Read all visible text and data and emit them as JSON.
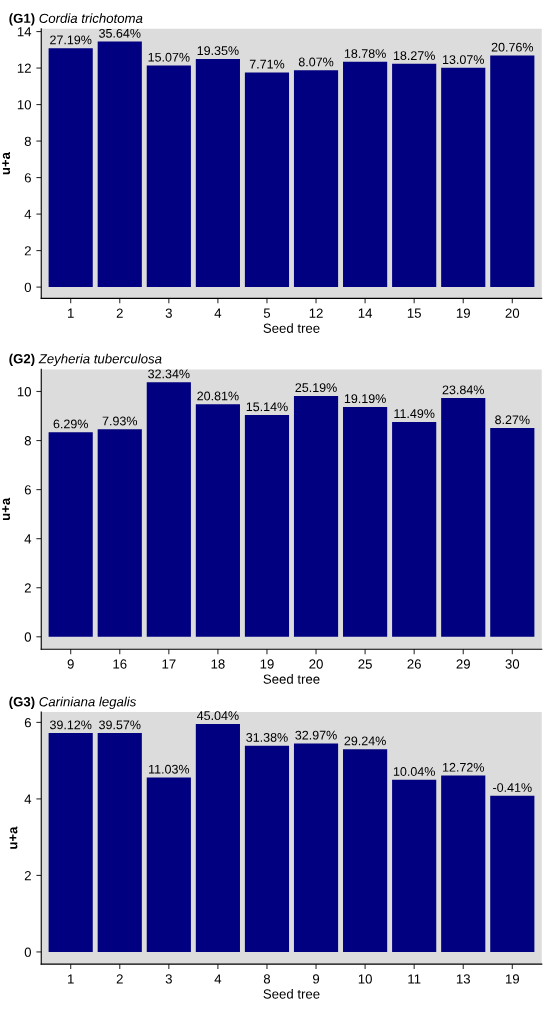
{
  "chart_data": [
    {
      "type": "bar",
      "title": "(G1) Cordia trichotoma",
      "xlabel": "Seed tree",
      "ylabel": "u+a",
      "categories": [
        "1",
        "2",
        "3",
        "4",
        "5",
        "12",
        "14",
        "15",
        "19",
        "20"
      ],
      "values": [
        13.09,
        13.45,
        12.14,
        12.5,
        11.76,
        11.88,
        12.34,
        12.23,
        12.01,
        12.69
      ],
      "color": "#000080",
      "annotations": [
        {
          "text": "27.19%",
          "x": "1",
          "y": 13.09
        },
        {
          "text": "35.64%",
          "x": "2",
          "y": 13.45
        },
        {
          "text": "15.07%",
          "x": "3",
          "y": 12.14
        },
        {
          "text": "19.35%",
          "x": "4",
          "y": 12.5
        },
        {
          "text": "7.71%",
          "x": "5",
          "y": 11.76
        },
        {
          "text": "8.07%",
          "x": "12",
          "y": 11.88
        },
        {
          "text": "18.78%",
          "x": "14",
          "y": 12.34
        },
        {
          "text": "18.27%",
          "x": "15",
          "y": 12.23
        },
        {
          "text": "13.07%",
          "x": "19",
          "y": 12.01
        },
        {
          "text": "20.76%",
          "x": "20",
          "y": 12.69
        }
      ],
      "ylim": [
        -0.62,
        14.15
      ],
      "yticks": [
        0,
        2,
        4,
        6,
        8,
        10,
        12,
        14
      ],
      "grid": false,
      "legend": false
    },
    {
      "type": "bar",
      "title": "(G2) Zeyheria tuberculosa",
      "xlabel": "Seed tree",
      "ylabel": "u+a",
      "categories": [
        "9",
        "16",
        "17",
        "18",
        "19",
        "20",
        "25",
        "26",
        "29",
        "30"
      ],
      "values": [
        8.34,
        8.46,
        10.38,
        9.48,
        9.04,
        9.82,
        9.37,
        8.76,
        9.73,
        8.51
      ],
      "color": "#000080",
      "annotations": [
        {
          "text": "6.29%",
          "x": "9",
          "y": 8.34
        },
        {
          "text": "7.93%",
          "x": "16",
          "y": 8.46
        },
        {
          "text": "32.34%",
          "x": "17",
          "y": 10.38
        },
        {
          "text": "20.81%",
          "x": "18",
          "y": 9.48
        },
        {
          "text": "15.14%",
          "x": "19",
          "y": 9.04
        },
        {
          "text": "25.19%",
          "x": "20",
          "y": 9.82
        },
        {
          "text": "19.19%",
          "x": "25",
          "y": 9.37
        },
        {
          "text": "11.49%",
          "x": "26",
          "y": 8.76
        },
        {
          "text": "23.84%",
          "x": "29",
          "y": 9.73
        },
        {
          "text": "8.27%",
          "x": "30",
          "y": 8.51
        }
      ],
      "ylim": [
        -0.51,
        10.9
      ],
      "yticks": [
        0,
        2,
        4,
        6,
        8,
        10
      ],
      "grid": false,
      "legend": false
    },
    {
      "type": "bar",
      "title": "(G3) Cariniana legalis",
      "xlabel": "Seed tree",
      "ylabel": "u+a",
      "categories": [
        "1",
        "2",
        "3",
        "4",
        "8",
        "9",
        "10",
        "11",
        "13",
        "19"
      ],
      "values": [
        5.72,
        5.72,
        4.56,
        5.96,
        5.39,
        5.45,
        5.3,
        4.5,
        4.61,
        4.08
      ],
      "color": "#000080",
      "annotations": [
        {
          "text": "39.12%",
          "x": "1",
          "y": 5.72
        },
        {
          "text": "39.57%",
          "x": "2",
          "y": 5.72
        },
        {
          "text": "11.03%",
          "x": "3",
          "y": 4.56
        },
        {
          "text": "45.04%",
          "x": "4",
          "y": 5.96
        },
        {
          "text": "31.38%",
          "x": "8",
          "y": 5.39
        },
        {
          "text": "32.97%",
          "x": "9",
          "y": 5.45
        },
        {
          "text": "29.24%",
          "x": "10",
          "y": 5.3
        },
        {
          "text": "10.04%",
          "x": "11",
          "y": 4.5
        },
        {
          "text": "12.72%",
          "x": "13",
          "y": 4.61
        },
        {
          "text": "-0.41%",
          "x": "19",
          "y": 4.08
        }
      ],
      "ylim": [
        -0.32,
        6.27
      ],
      "yticks": [
        0,
        2,
        4,
        6
      ],
      "grid": false,
      "legend": false
    }
  ]
}
